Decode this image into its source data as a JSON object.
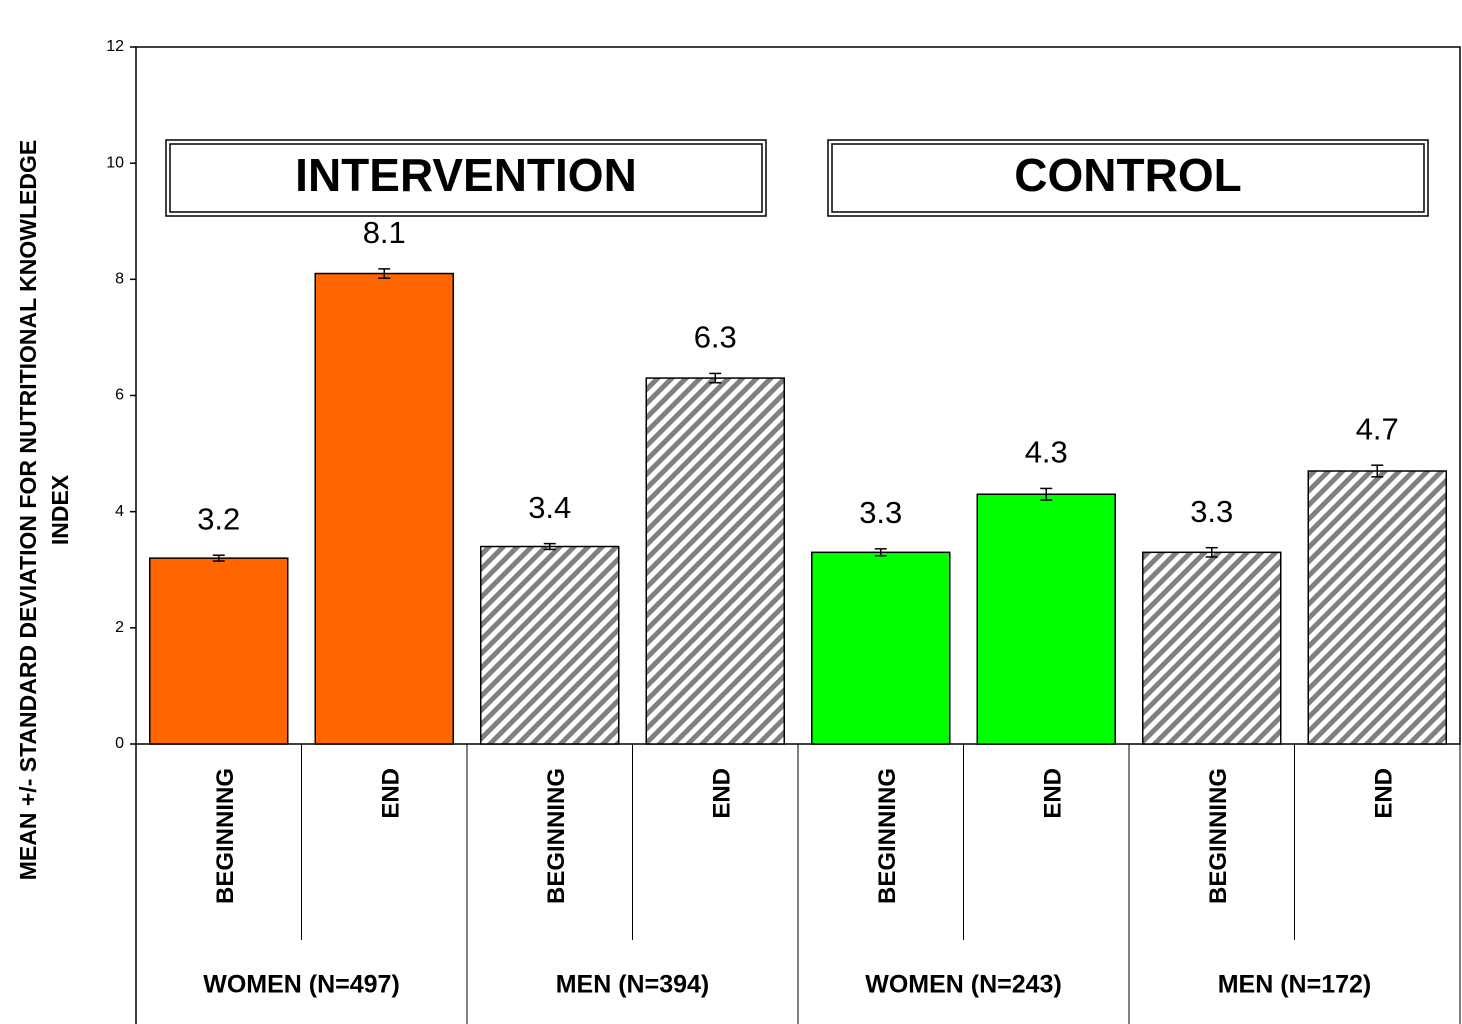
{
  "chart_data": {
    "type": "bar",
    "y_label": [
      "MEAN +/- STANDARD DEVIATION FOR NUTRITIONAL KNOWLEDGE",
      "INDEX"
    ],
    "categories": [
      "BEGINNING",
      "END",
      "BEGINNING",
      "END",
      "BEGINNING",
      "END",
      "BEGINNING",
      "END"
    ],
    "groups": [
      "WOMEN (N=497)",
      "MEN (N=394)",
      "WOMEN (N=243)",
      "MEN (N=172)"
    ],
    "panels": [
      "INTERVENTION",
      "CONTROL"
    ],
    "values": [
      3.2,
      8.1,
      3.4,
      6.3,
      3.3,
      4.3,
      3.3,
      4.7
    ],
    "errors": [
      0.05,
      0.08,
      0.05,
      0.08,
      0.06,
      0.1,
      0.08,
      0.1
    ],
    "colors": [
      "#ff6600",
      "#ff6600",
      "#808080",
      "#808080",
      "#00ff00",
      "#00ff00",
      "#808080",
      "#808080"
    ],
    "hatched": [
      false,
      false,
      true,
      true,
      false,
      false,
      true,
      true
    ],
    "ylim": [
      0,
      12
    ],
    "yticks": [
      0,
      2,
      4,
      6,
      8,
      10,
      12
    ]
  }
}
